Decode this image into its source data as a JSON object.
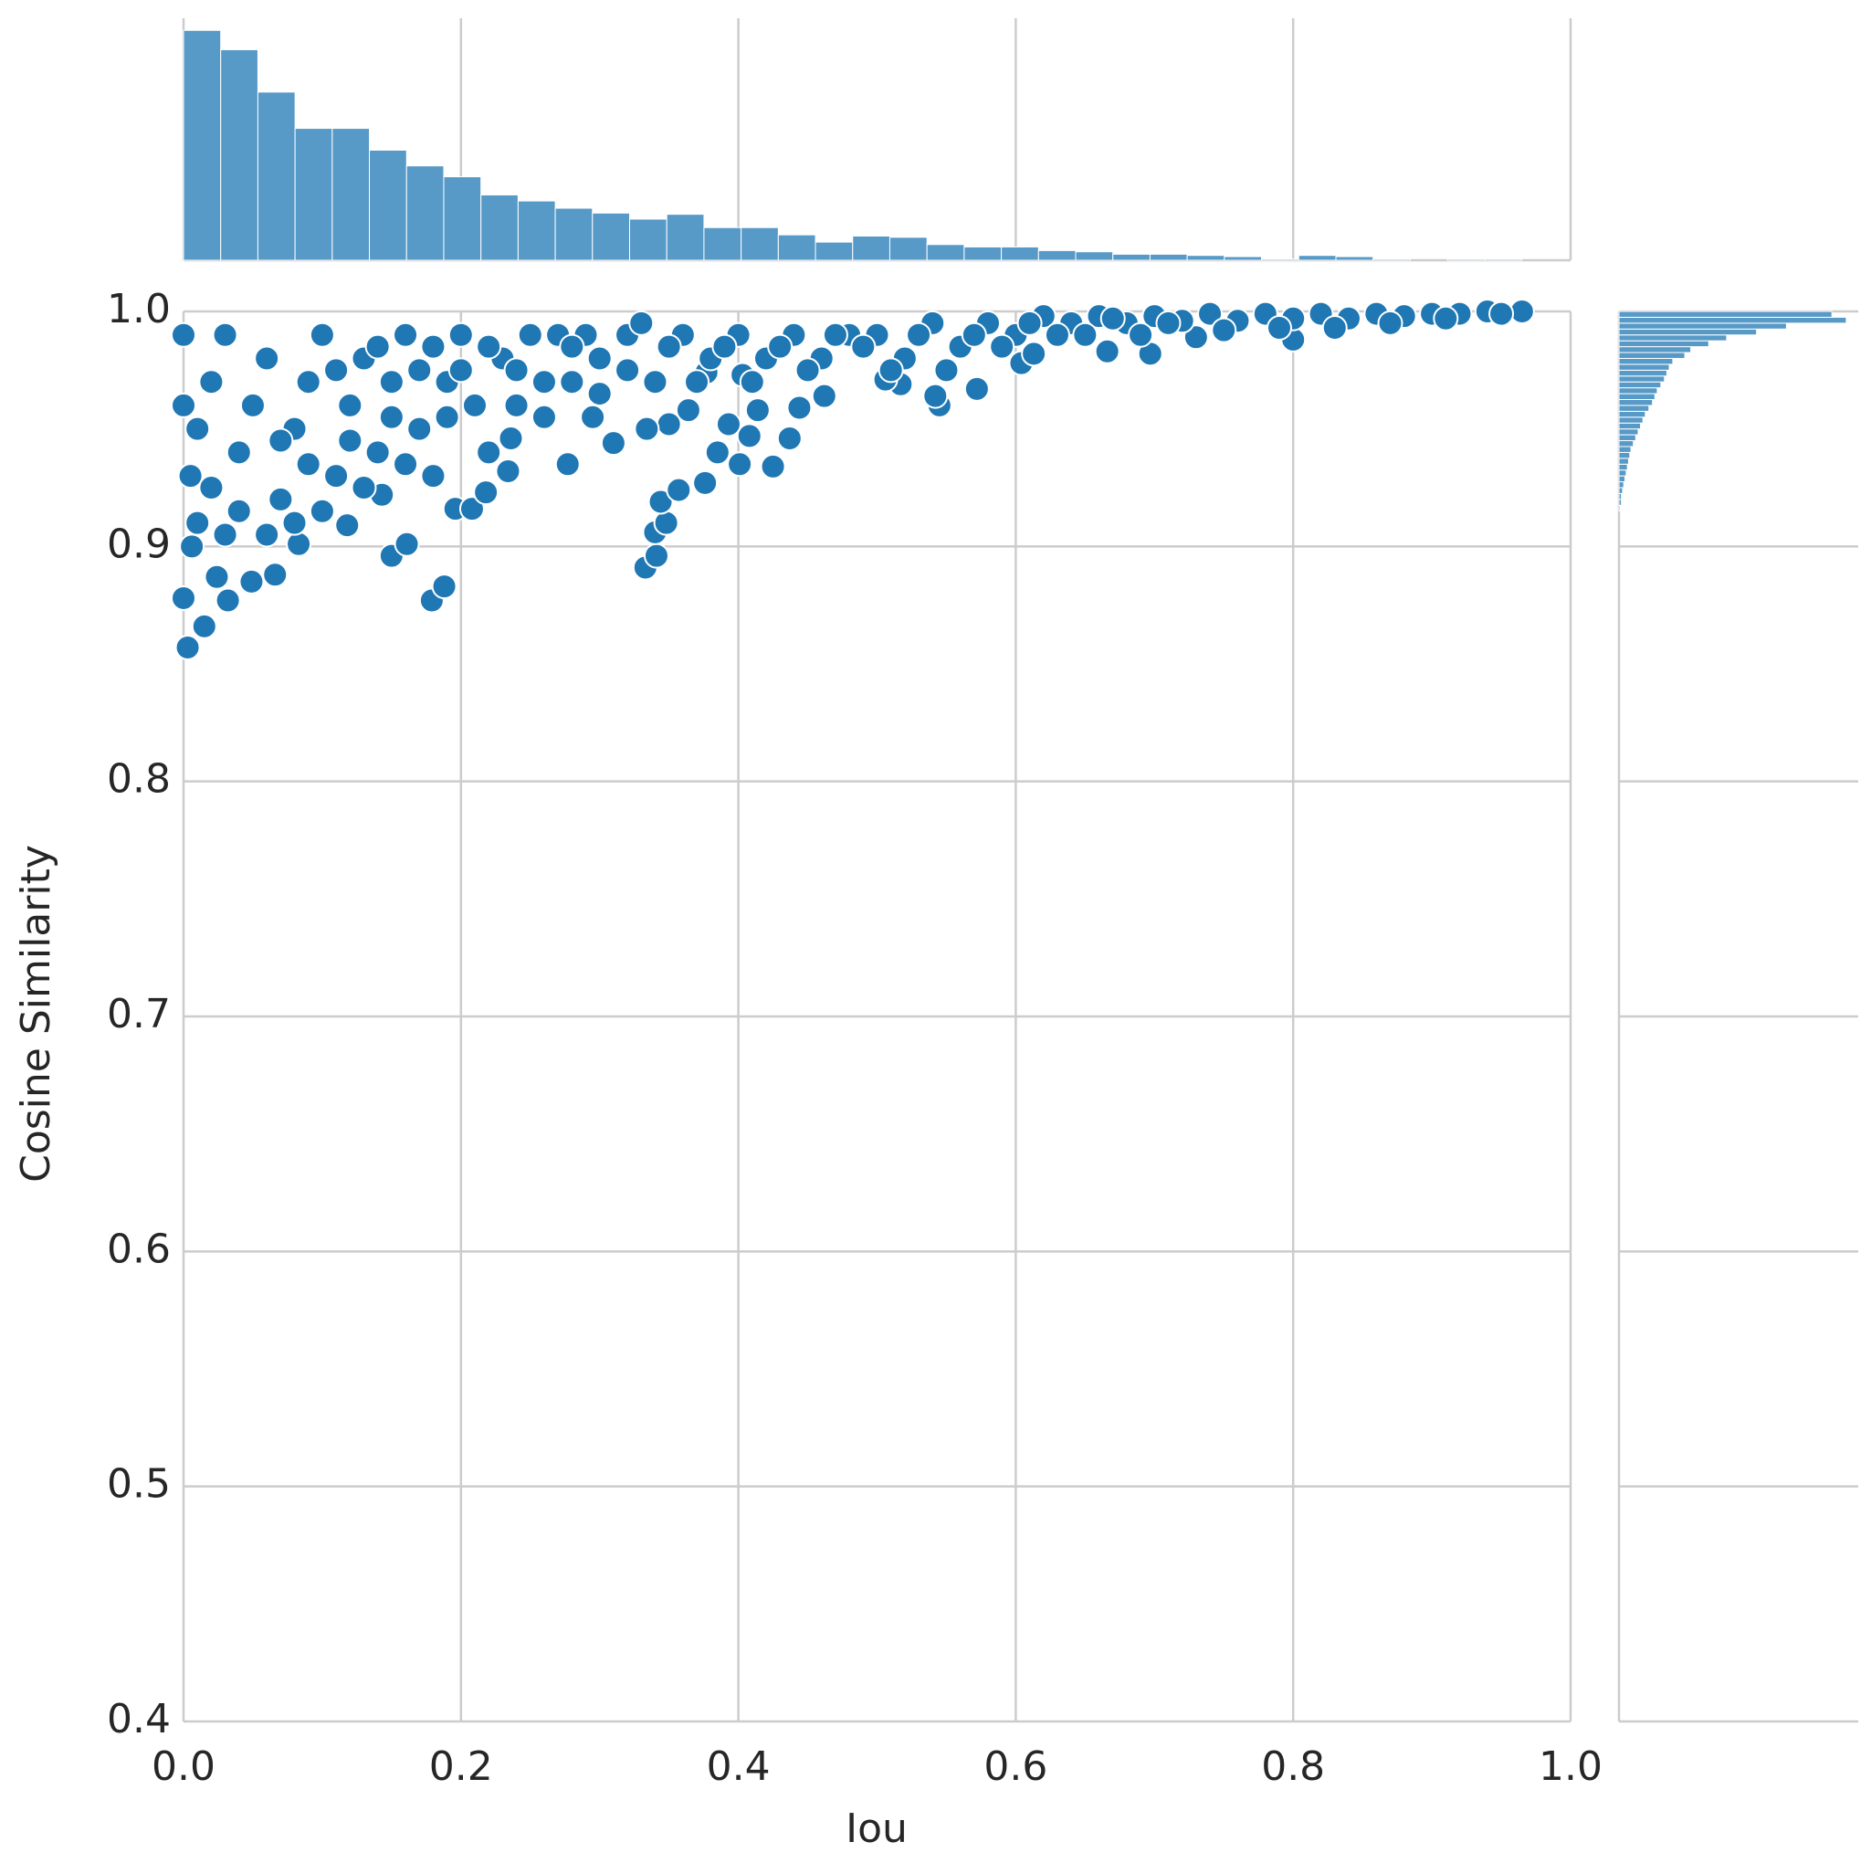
{
  "chart_data": [
    {
      "type": "scatter",
      "xlabel": "Iou",
      "ylabel": "Cosine Similarity",
      "color": "#1f77b4",
      "grid": true,
      "xlim": [
        0,
        1
      ],
      "xticks": [
        {
          "value": 0,
          "label": "0.0"
        },
        0.2,
        0.4,
        0.6,
        0.8,
        {
          "value": 1,
          "label": "1.0"
        }
      ],
      "ylim": [
        0.4,
        1
      ],
      "yticks": [
        0.4,
        0.5,
        0.6,
        0.7,
        0.8,
        0.9,
        {
          "value": 1,
          "label": "1.0"
        }
      ],
      "x": [
        0,
        0.003,
        0.015,
        0.024,
        0.032,
        0.049,
        0.066,
        0.083,
        0.006,
        0.15,
        0.161,
        0.179,
        0.188,
        0.196,
        0.208,
        0.218,
        0.277,
        0.31,
        0.333,
        0.341,
        0.34,
        0.348,
        0.344,
        0.357,
        0.376,
        0.385,
        0.401,
        0.425,
        0.414,
        0.437,
        0.393,
        0.408,
        0.364,
        0.35,
        0.334,
        0.295,
        0.236,
        0.234,
        0.143,
        0.118,
        0.545,
        0.542,
        0.572,
        0.517,
        0.506,
        0.462,
        0.444,
        0.403,
        0.377,
        0.666,
        0.697,
        0.73,
        0.8,
        0.604,
        0.613,
        0.005,
        0.01,
        0.02,
        0.03,
        0.04,
        0.05,
        0.06,
        0.07,
        0.08,
        0.09,
        0.1,
        0.11,
        0.12,
        0.13,
        0.14,
        0.15,
        0.16,
        0.17,
        0.18,
        0.19,
        0.2,
        0.21,
        0.22,
        0.23,
        0.24,
        0.25,
        0.26,
        0.27,
        0.28,
        0.29,
        0.3,
        0.32,
        0.34,
        0.36,
        0.38,
        0.4,
        0.42,
        0.44,
        0.46,
        0.48,
        0.5,
        0.52,
        0.54,
        0.56,
        0.58,
        0.6,
        0.62,
        0.64,
        0.66,
        0.68,
        0.7,
        0.72,
        0.74,
        0.76,
        0.78,
        0.8,
        0.82,
        0.84,
        0.86,
        0.88,
        0.9,
        0.92,
        0.94,
        0.965,
        0,
        0,
        0.01,
        0.02,
        0.03,
        0.04,
        0.06,
        0.07,
        0.08,
        0.09,
        0.1,
        0.11,
        0.12,
        0.13,
        0.14,
        0.15,
        0.16,
        0.17,
        0.18,
        0.19,
        0.2,
        0.22,
        0.24,
        0.26,
        0.28,
        0.3,
        0.32,
        0.33,
        0.35,
        0.37,
        0.39,
        0.41,
        0.43,
        0.45,
        0.47,
        0.49,
        0.51,
        0.53,
        0.55,
        0.57,
        0.59,
        0.61,
        0.63,
        0.65,
        0.67,
        0.69,
        0.71,
        0.75,
        0.79,
        0.83,
        0.87,
        0.91,
        0.95
      ],
      "values": [
        0.878,
        0.857,
        0.866,
        0.887,
        0.877,
        0.885,
        0.888,
        0.901,
        0.9,
        0.896,
        0.901,
        0.877,
        0.883,
        0.916,
        0.916,
        0.923,
        0.935,
        0.944,
        0.891,
        0.896,
        0.906,
        0.91,
        0.919,
        0.924,
        0.927,
        0.94,
        0.935,
        0.934,
        0.958,
        0.946,
        0.952,
        0.947,
        0.958,
        0.952,
        0.95,
        0.955,
        0.946,
        0.932,
        0.922,
        0.909,
        0.96,
        0.964,
        0.967,
        0.969,
        0.971,
        0.964,
        0.959,
        0.973,
        0.974,
        0.983,
        0.982,
        0.989,
        0.988,
        0.978,
        0.982,
        0.93,
        0.95,
        0.97,
        0.99,
        0.94,
        0.96,
        0.98,
        0.92,
        0.95,
        0.97,
        0.99,
        0.93,
        0.96,
        0.98,
        0.94,
        0.97,
        0.99,
        0.95,
        0.93,
        0.97,
        0.99,
        0.96,
        0.94,
        0.98,
        0.96,
        0.99,
        0.97,
        0.99,
        0.97,
        0.99,
        0.98,
        0.99,
        0.97,
        0.99,
        0.98,
        0.99,
        0.98,
        0.99,
        0.98,
        0.99,
        0.99,
        0.98,
        0.995,
        0.985,
        0.995,
        0.99,
        0.998,
        0.995,
        0.998,
        0.995,
        0.998,
        0.996,
        0.999,
        0.996,
        0.999,
        0.997,
        0.999,
        0.997,
        0.999,
        0.998,
        0.999,
        0.999,
        1,
        1,
        0.96,
        0.99,
        0.91,
        0.925,
        0.905,
        0.915,
        0.905,
        0.945,
        0.91,
        0.935,
        0.915,
        0.975,
        0.945,
        0.925,
        0.985,
        0.955,
        0.935,
        0.975,
        0.985,
        0.955,
        0.975,
        0.985,
        0.975,
        0.955,
        0.985,
        0.965,
        0.975,
        0.995,
        0.985,
        0.97,
        0.985,
        0.97,
        0.985,
        0.975,
        0.99,
        0.985,
        0.975,
        0.99,
        0.975,
        0.99,
        0.985,
        0.995,
        0.99,
        0.99,
        0.997,
        0.99,
        0.995,
        0.992,
        0.993,
        0.993,
        0.995,
        0.997,
        0.999
      ]
    },
    {
      "type": "histogram",
      "orientation": "vertical",
      "color": "#5799c7",
      "bins": [
        0,
        0.0268,
        0.0536,
        0.0804,
        0.1072,
        0.134,
        0.1608,
        0.1876,
        0.2144,
        0.2412,
        0.268,
        0.2948,
        0.3216,
        0.3484,
        0.3752,
        0.402,
        0.4288,
        0.4556,
        0.4824,
        0.5092,
        0.536,
        0.5628,
        0.5896,
        0.6164,
        0.6432,
        0.67,
        0.6968,
        0.7236,
        0.7504,
        0.7772,
        0.804,
        0.8308,
        0.8576,
        0.8844,
        0.9112,
        0.938,
        0.9648
      ],
      "values": [
        190,
        174,
        139,
        109,
        109,
        91,
        78,
        69,
        54,
        49,
        43,
        39,
        34,
        38,
        27,
        27,
        21,
        15,
        20,
        19,
        13,
        11,
        11,
        8,
        7,
        5,
        5,
        4,
        3,
        1,
        4,
        3,
        1,
        0,
        1,
        1
      ],
      "ylim": [
        0,
        200
      ]
    },
    {
      "type": "histogram",
      "orientation": "horizontal",
      "color": "#5799c7",
      "bins": [
        0.915,
        0.9175,
        0.92,
        0.9225,
        0.925,
        0.9275,
        0.93,
        0.9325,
        0.935,
        0.9375,
        0.94,
        0.9425,
        0.945,
        0.9475,
        0.95,
        0.9525,
        0.955,
        0.9575,
        0.96,
        0.9625,
        0.965,
        0.9675,
        0.97,
        0.9725,
        0.975,
        0.9775,
        0.98,
        0.9825,
        0.985,
        0.9875,
        0.99,
        0.9925,
        0.995,
        0.9975,
        1
      ],
      "values": [
        1,
        2,
        2,
        3,
        4,
        5,
        6,
        7,
        8,
        9,
        10,
        12,
        14,
        16,
        18,
        20,
        22,
        25,
        28,
        30,
        32,
        35,
        38,
        40,
        42,
        45,
        55,
        60,
        75,
        90,
        115,
        140,
        190,
        178
      ],
      "xlim": [
        0,
        200
      ]
    }
  ]
}
